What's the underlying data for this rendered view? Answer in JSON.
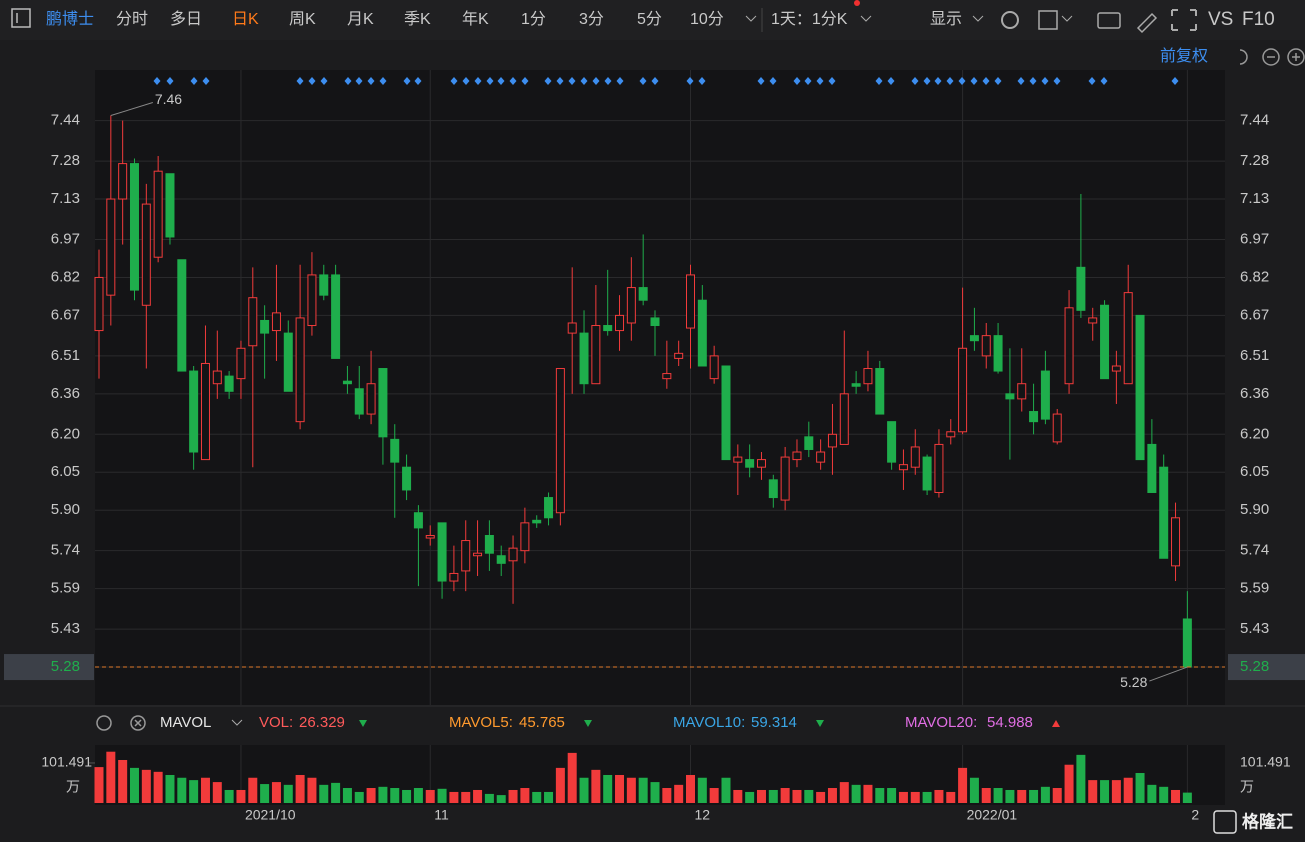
{
  "toolbar": {
    "symbol": "鹏博士",
    "tabs": [
      "分时",
      "多日",
      "日K",
      "周K",
      "月K",
      "季K",
      "年K",
      "1分",
      "3分",
      "5分",
      "10分"
    ],
    "active_tab": 2,
    "period": "1天：1分K",
    "display": "显示",
    "vs": "VS",
    "f10": "F10",
    "adjust": "前复权"
  },
  "footer": {
    "logo": "格隆汇"
  },
  "chart_data": [
    {
      "type": "candlestick",
      "up_color": "#f23b3b",
      "down_color": "#1fae4c",
      "categories": [
        null,
        null,
        null,
        null,
        null,
        null,
        null,
        null,
        null,
        null,
        null,
        null,
        "2021/10",
        null,
        null,
        null,
        null,
        null,
        null,
        null,
        null,
        null,
        null,
        null,
        null,
        null,
        null,
        null,
        "11",
        null,
        null,
        null,
        null,
        null,
        null,
        null,
        null,
        null,
        null,
        null,
        null,
        null,
        null,
        null,
        null,
        null,
        null,
        null,
        null,
        null,
        "12",
        null,
        null,
        null,
        null,
        null,
        null,
        null,
        null,
        null,
        null,
        null,
        null,
        null,
        null,
        null,
        null,
        null,
        null,
        null,
        null,
        null,
        null,
        "2022/01",
        null,
        null,
        null,
        null,
        null,
        null,
        null,
        null,
        null,
        null,
        null,
        null,
        null,
        null,
        null,
        null,
        null,
        null,
        "2"
      ],
      "open": [
        6.61,
        6.75,
        7.13,
        7.27,
        6.71,
        6.9,
        7.23,
        6.89,
        6.45,
        6.1,
        6.4,
        6.43,
        6.42,
        6.55,
        6.65,
        6.61,
        6.6,
        6.25,
        6.63,
        6.83,
        6.83,
        6.41,
        6.38,
        6.28,
        6.46,
        6.18,
        6.07,
        5.89,
        5.79,
        5.85,
        5.62,
        5.66,
        5.72,
        5.8,
        5.72,
        5.7,
        5.74,
        5.86,
        5.95,
        5.89,
        6.6,
        6.6,
        6.4,
        6.63,
        6.61,
        6.64,
        6.78,
        6.66,
        6.42,
        6.5,
        6.62,
        6.73,
        6.42,
        6.47,
        6.09,
        6.1,
        6.07,
        6.02,
        5.94,
        6.1,
        6.19,
        6.09,
        6.15,
        6.16,
        6.4,
        6.4,
        6.46,
        6.25,
        6.06,
        6.07,
        6.11,
        5.97,
        6.19,
        6.21,
        6.59,
        6.51,
        6.59,
        6.36,
        6.34,
        6.29,
        6.45,
        6.17,
        6.4,
        6.86,
        6.64,
        6.71,
        6.45,
        6.4,
        6.67,
        6.16,
        6.07,
        5.68,
        5.47
      ],
      "high": [
        6.93,
        7.46,
        7.44,
        7.29,
        7.19,
        7.3,
        7.23,
        6.89,
        6.47,
        6.63,
        6.61,
        6.45,
        6.57,
        6.86,
        6.71,
        6.87,
        6.65,
        6.87,
        6.92,
        6.87,
        6.87,
        6.47,
        6.47,
        6.53,
        6.46,
        6.24,
        6.12,
        5.92,
        5.84,
        5.85,
        5.76,
        5.86,
        5.86,
        5.86,
        5.76,
        5.8,
        5.91,
        5.88,
        5.97,
        6.46,
        6.86,
        6.69,
        6.79,
        6.85,
        6.75,
        6.9,
        6.99,
        6.69,
        6.57,
        6.57,
        6.87,
        6.79,
        6.55,
        6.47,
        6.16,
        6.16,
        6.13,
        6.04,
        6.15,
        6.18,
        6.25,
        6.18,
        6.32,
        6.61,
        6.45,
        6.53,
        6.49,
        6.25,
        6.14,
        6.22,
        6.12,
        6.22,
        6.26,
        6.78,
        6.7,
        6.64,
        6.64,
        6.54,
        6.54,
        6.4,
        6.53,
        6.3,
        6.77,
        7.15,
        6.7,
        6.73,
        6.53,
        6.87,
        6.67,
        6.26,
        6.12,
        5.93,
        5.58
      ],
      "low": [
        6.42,
        6.63,
        6.95,
        6.73,
        6.46,
        6.88,
        6.95,
        6.45,
        6.06,
        6.1,
        6.34,
        6.34,
        6.34,
        6.07,
        6.42,
        6.49,
        6.37,
        6.22,
        6.59,
        6.73,
        6.5,
        6.36,
        6.26,
        6.24,
        6.08,
        5.87,
        5.94,
        5.6,
        5.76,
        5.55,
        5.58,
        5.58,
        5.64,
        5.66,
        5.64,
        5.53,
        5.69,
        5.83,
        5.84,
        5.84,
        6.36,
        6.36,
        6.4,
        6.59,
        6.53,
        6.57,
        6.71,
        6.51,
        6.38,
        6.47,
        6.46,
        6.47,
        6.4,
        6.1,
        5.96,
        6.03,
        6.02,
        5.91,
        5.9,
        6.07,
        6.11,
        6.06,
        6.04,
        6.16,
        6.36,
        6.37,
        6.28,
        6.06,
        5.98,
        6.04,
        5.96,
        5.95,
        6.16,
        6.2,
        6.53,
        6.46,
        6.44,
        6.1,
        6.29,
        6.2,
        6.24,
        6.16,
        6.36,
        6.66,
        6.57,
        6.42,
        6.32,
        6.4,
        6.1,
        5.97,
        5.71,
        5.62,
        5.28
      ],
      "close": [
        6.82,
        7.13,
        7.27,
        6.77,
        7.11,
        7.24,
        6.98,
        6.45,
        6.13,
        6.48,
        6.45,
        6.37,
        6.54,
        6.74,
        6.6,
        6.68,
        6.37,
        6.66,
        6.83,
        6.75,
        6.5,
        6.4,
        6.28,
        6.4,
        6.19,
        6.09,
        5.98,
        5.83,
        5.8,
        5.62,
        5.65,
        5.78,
        5.73,
        5.73,
        5.69,
        5.75,
        5.85,
        5.85,
        5.87,
        6.46,
        6.64,
        6.4,
        6.63,
        6.61,
        6.67,
        6.78,
        6.73,
        6.63,
        6.44,
        6.52,
        6.83,
        6.47,
        6.51,
        6.1,
        6.11,
        6.07,
        6.1,
        5.95,
        6.11,
        6.13,
        6.14,
        6.13,
        6.2,
        6.36,
        6.39,
        6.46,
        6.28,
        6.09,
        6.08,
        6.15,
        5.98,
        6.16,
        6.21,
        6.54,
        6.57,
        6.59,
        6.45,
        6.34,
        6.4,
        6.25,
        6.26,
        6.28,
        6.7,
        6.69,
        6.66,
        6.42,
        6.47,
        6.76,
        6.1,
        5.97,
        5.71,
        5.87,
        5.28
      ],
      "ylim": [
        5.13,
        7.64
      ],
      "yticks": [
        7.44,
        7.28,
        7.13,
        6.97,
        6.82,
        6.67,
        6.51,
        6.36,
        {
          "value": 6.2,
          "label": "6.20"
        },
        6.05,
        {
          "value": 5.9,
          "label": "5.90"
        },
        5.74,
        5.59,
        5.43,
        5.28
      ],
      "max_label": "7.46",
      "min_label": "5.28",
      "grid": true
    },
    {
      "type": "bar",
      "title": "MAVOL",
      "indicators": [
        {
          "name": "VOL:",
          "value": 26.329,
          "color": "#ff5b5b"
        },
        {
          "name": "MAVOL5:",
          "value": 45.765,
          "color": "#ff9a2e"
        },
        {
          "name": "MAVOL10:",
          "value": 59.314,
          "color": "#3aa6e6"
        },
        {
          "name": "MAVOL20:",
          "value": 54.988,
          "color": "#e16ee4"
        }
      ],
      "values": [
        91,
        130,
        109,
        89,
        84,
        79,
        71,
        64,
        58,
        64,
        53,
        33,
        33,
        64,
        48,
        53,
        46,
        71,
        64,
        46,
        51,
        38,
        28,
        38,
        41,
        38,
        33,
        38,
        33,
        36,
        28,
        28,
        33,
        23,
        20,
        33,
        38,
        28,
        28,
        89,
        127,
        64,
        84,
        71,
        71,
        64,
        64,
        53,
        38,
        46,
        71,
        64,
        38,
        64,
        33,
        28,
        33,
        33,
        38,
        33,
        33,
        28,
        38,
        53,
        46,
        46,
        38,
        38,
        28,
        28,
        28,
        33,
        28,
        89,
        64,
        38,
        38,
        33,
        33,
        33,
        41,
        38,
        97,
        122,
        58,
        58,
        58,
        64,
        76,
        46,
        41,
        33,
        26.329
      ],
      "ylim": [
        0,
        147
      ],
      "yticks": [
        101.491
      ],
      "y_unit": "万"
    }
  ]
}
